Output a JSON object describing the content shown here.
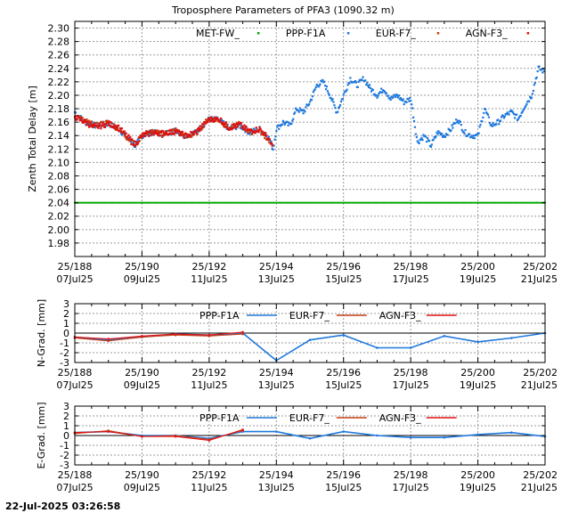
{
  "page": {
    "title": "Troposphere Parameters of PFA3 (1090.32 m)",
    "timestamp": "22-Jul-2025 03:26:58"
  },
  "colors": {
    "met": "#00aa00",
    "ppp": "#1e78dc",
    "eur": "#c83c14",
    "agn": "#e01010",
    "baseline": "#000000"
  },
  "x_ticks": [
    {
      "x": 188,
      "l1": "25/188",
      "l2": "07Jul25"
    },
    {
      "x": 190,
      "l1": "25/190",
      "l2": "09Jul25"
    },
    {
      "x": 192,
      "l1": "25/192",
      "l2": "11Jul25"
    },
    {
      "x": 194,
      "l1": "25/194",
      "l2": "13Jul25"
    },
    {
      "x": 196,
      "l1": "25/196",
      "l2": "15Jul25"
    },
    {
      "x": 198,
      "l1": "25/198",
      "l2": "17Jul25"
    },
    {
      "x": 200,
      "l1": "25/200",
      "l2": "19Jul25"
    },
    {
      "x": 202,
      "l1": "25/202",
      "l2": "21Jul25"
    }
  ],
  "chart_data": [
    {
      "type": "scatter",
      "title": "Troposphere Parameters of PFA3 (1090.32 m)",
      "ylabel": "Zenth Total Delay [m]",
      "xlim": [
        188,
        202
      ],
      "ylim": [
        1.96,
        2.31
      ],
      "yticks": [
        1.98,
        2.0,
        2.02,
        2.04,
        2.06,
        2.08,
        2.1,
        2.12,
        2.14,
        2.16,
        2.18,
        2.2,
        2.22,
        2.24,
        2.26,
        2.28,
        2.3
      ],
      "grid": true,
      "legend": [
        "MET-FW_",
        "PPP-F1A",
        "EUR-F7_",
        "AGN-F3_"
      ],
      "series": [
        {
          "name": "MET-FW_",
          "key": "met",
          "style": "flat",
          "y": 2.04
        },
        {
          "name": "PPP-F1A",
          "key": "ppp",
          "style": "dense",
          "x": [
            188.0,
            188.3,
            188.6,
            189.0,
            189.3,
            189.5,
            189.8,
            190.0,
            190.3,
            190.6,
            191.0,
            191.3,
            191.6,
            192.0,
            192.3,
            192.6,
            192.9,
            193.2,
            193.5,
            193.8,
            193.9,
            194.0,
            194.2,
            194.4,
            194.6,
            194.8,
            195.0,
            195.2,
            195.4,
            195.6,
            195.8,
            196.0,
            196.2,
            196.4,
            196.6,
            196.8,
            197.0,
            197.2,
            197.4,
            197.6,
            197.8,
            198.0,
            198.2,
            198.4,
            198.6,
            198.8,
            199.0,
            199.2,
            199.4,
            199.6,
            199.8,
            200.0,
            200.2,
            200.4,
            200.6,
            200.8,
            201.0,
            201.2,
            201.4,
            201.6,
            201.8,
            202.0
          ],
          "y": [
            2.175,
            2.16,
            2.155,
            2.158,
            2.15,
            2.14,
            2.125,
            2.14,
            2.145,
            2.142,
            2.148,
            2.14,
            2.145,
            2.165,
            2.163,
            2.15,
            2.155,
            2.145,
            2.15,
            2.135,
            2.12,
            2.15,
            2.16,
            2.155,
            2.18,
            2.175,
            2.19,
            2.215,
            2.22,
            2.2,
            2.175,
            2.2,
            2.225,
            2.215,
            2.225,
            2.21,
            2.2,
            2.21,
            2.195,
            2.2,
            2.19,
            2.195,
            2.13,
            2.14,
            2.125,
            2.145,
            2.14,
            2.15,
            2.165,
            2.145,
            2.14,
            2.14,
            2.18,
            2.155,
            2.16,
            2.17,
            2.175,
            2.165,
            2.185,
            2.2,
            2.24,
            2.235
          ]
        },
        {
          "name": "EUR-F7_",
          "key": "eur",
          "style": "dense",
          "x": [
            188.0,
            188.3,
            188.6,
            189.0,
            189.3,
            189.5,
            189.8,
            190.0,
            190.3,
            190.6,
            191.0,
            191.3,
            191.6,
            192.0,
            192.3,
            192.6,
            192.9,
            193.2,
            193.5,
            193.8,
            193.9
          ],
          "y": [
            2.17,
            2.162,
            2.155,
            2.16,
            2.15,
            2.14,
            2.125,
            2.142,
            2.146,
            2.142,
            2.148,
            2.138,
            2.143,
            2.166,
            2.163,
            2.15,
            2.158,
            2.145,
            2.148,
            2.132,
            2.118
          ]
        },
        {
          "name": "AGN-F3_",
          "key": "agn",
          "style": "dense",
          "x": [
            188.0,
            188.3,
            188.6,
            189.0,
            189.3,
            189.5,
            189.8,
            190.0,
            190.3,
            190.6,
            191.0,
            191.3,
            191.6,
            192.0,
            192.3,
            192.6,
            192.9,
            193.2,
            193.5,
            193.8,
            193.9
          ],
          "y": [
            2.168,
            2.16,
            2.152,
            2.158,
            2.152,
            2.142,
            2.127,
            2.14,
            2.144,
            2.144,
            2.146,
            2.14,
            2.145,
            2.164,
            2.165,
            2.152,
            2.156,
            2.147,
            2.15,
            2.134,
            2.12
          ]
        }
      ]
    },
    {
      "type": "line",
      "ylabel": "N-Grad. [mm]",
      "xlim": [
        188,
        202
      ],
      "ylim": [
        -3,
        3
      ],
      "yticks": [
        -3,
        -2,
        -1,
        0,
        1,
        2,
        3
      ],
      "grid": true,
      "legend": [
        "PPP-F1A",
        "EUR-F7_",
        "AGN-F3_"
      ],
      "series": [
        {
          "name": "PPP-F1A",
          "key": "ppp",
          "style": "line",
          "x": [
            188,
            189,
            190,
            191,
            192,
            193,
            194,
            195,
            196,
            197,
            198,
            199,
            200,
            201,
            202
          ],
          "y": [
            -0.4,
            -0.7,
            -0.4,
            -0.1,
            -0.2,
            0.0,
            -2.8,
            -0.7,
            -0.2,
            -1.5,
            -1.5,
            -0.3,
            -0.9,
            -0.5,
            0.0
          ]
        },
        {
          "name": "EUR-F7_",
          "key": "eur",
          "style": "line",
          "x": [
            188,
            189,
            190,
            191,
            192,
            193
          ],
          "y": [
            -0.5,
            -0.8,
            -0.4,
            -0.2,
            -0.3,
            -0.1
          ]
        },
        {
          "name": "AGN-F3_",
          "key": "agn",
          "style": "line",
          "x": [
            188,
            189,
            190,
            191,
            192,
            193
          ],
          "y": [
            -0.4,
            -0.6,
            -0.3,
            -0.1,
            -0.2,
            0.1
          ]
        }
      ]
    },
    {
      "type": "line",
      "ylabel": "E-Grad. [mm]",
      "xlim": [
        188,
        202
      ],
      "ylim": [
        -3,
        3
      ],
      "yticks": [
        -3,
        -2,
        -1,
        0,
        1,
        2,
        3
      ],
      "grid": true,
      "legend": [
        "PPP-F1A",
        "EUR-F7_",
        "AGN-F3_"
      ],
      "series": [
        {
          "name": "PPP-F1A",
          "key": "ppp",
          "style": "line",
          "x": [
            188,
            189,
            190,
            191,
            192,
            193,
            194,
            195,
            196,
            197,
            198,
            199,
            200,
            201,
            202
          ],
          "y": [
            0.3,
            0.4,
            0.0,
            0.0,
            -0.3,
            0.4,
            0.4,
            -0.3,
            0.4,
            0.0,
            -0.2,
            -0.2,
            0.1,
            0.3,
            -0.1
          ]
        },
        {
          "name": "EUR-F7_",
          "key": "eur",
          "style": "line",
          "x": [
            188,
            189,
            190,
            191,
            192,
            193
          ],
          "y": [
            0.2,
            0.5,
            -0.1,
            0.0,
            -0.4,
            0.5
          ]
        },
        {
          "name": "AGN-F3_",
          "key": "agn",
          "style": "line",
          "x": [
            188,
            189,
            190,
            191,
            192,
            193
          ],
          "y": [
            0.3,
            0.4,
            -0.1,
            -0.1,
            -0.5,
            0.6
          ]
        }
      ]
    }
  ]
}
